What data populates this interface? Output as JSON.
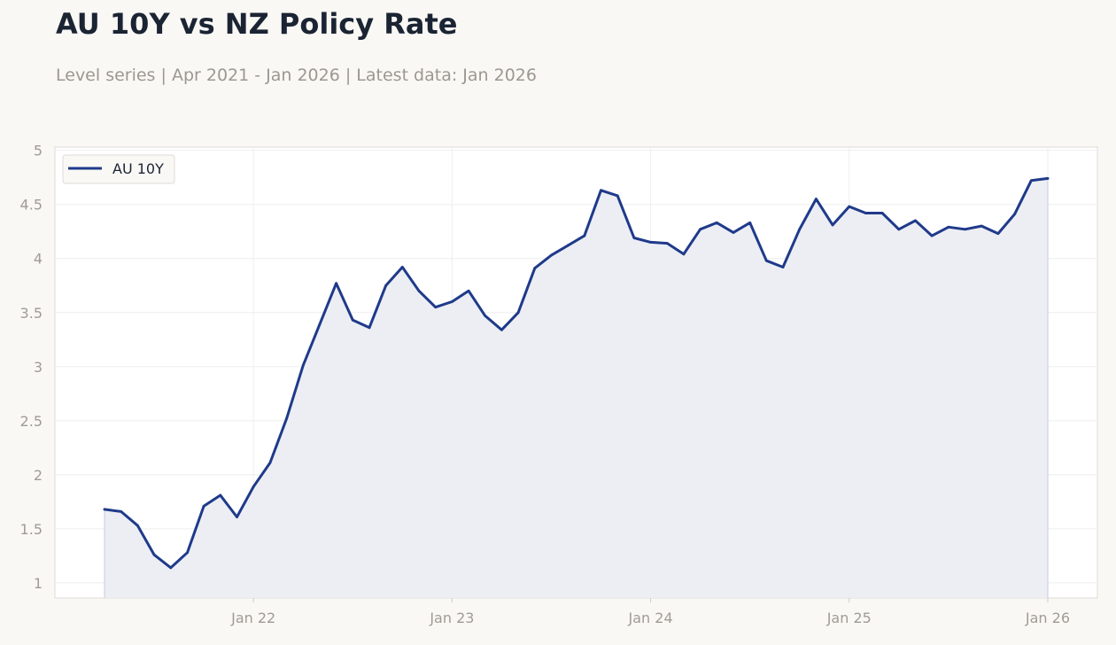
{
  "header": {
    "title": "AU 10Y vs NZ Policy Rate",
    "subtitle": "Level series | Apr 2021 - Jan 2026 | Latest data: Jan 2026"
  },
  "colors": {
    "series": "#1f3a8a",
    "area_fill": "#eceef4",
    "grid": "#eeeeee",
    "axis_text": "#a09c94",
    "background": "#f9f8f5",
    "plot_background": "#ffffff"
  },
  "chart_data": {
    "type": "line",
    "title": "AU 10Y vs NZ Policy Rate",
    "subtitle": "Level series | Apr 2021 - Jan 2026 | Latest data: Jan 2026",
    "xlabel": "",
    "ylabel": "",
    "ylim": [
      0.86,
      5.03
    ],
    "xlim": [
      "2021-01",
      "2026-04"
    ],
    "yticks": [
      1,
      1.5,
      2,
      2.5,
      3,
      3.5,
      4,
      4.5,
      5
    ],
    "ytick_labels": [
      "1",
      "1.5",
      "2",
      "2.5",
      "3",
      "3.5",
      "4",
      "4.5",
      "5"
    ],
    "xticks": [
      "2022-01",
      "2023-01",
      "2024-01",
      "2025-01",
      "2026-01"
    ],
    "xtick_labels": [
      "Jan 22",
      "Jan 23",
      "Jan 24",
      "Jan 25",
      "Jan 26"
    ],
    "grid": true,
    "area_fill": true,
    "legend": {
      "position": "top-left",
      "entries": [
        "AU 10Y"
      ]
    },
    "x": [
      "2021-04",
      "2021-05",
      "2021-06",
      "2021-07",
      "2021-08",
      "2021-09",
      "2021-10",
      "2021-11",
      "2021-12",
      "2022-01",
      "2022-02",
      "2022-03",
      "2022-04",
      "2022-05",
      "2022-06",
      "2022-07",
      "2022-08",
      "2022-09",
      "2022-10",
      "2022-11",
      "2022-12",
      "2023-01",
      "2023-02",
      "2023-03",
      "2023-04",
      "2023-05",
      "2023-06",
      "2023-07",
      "2023-08",
      "2023-09",
      "2023-10",
      "2023-11",
      "2023-12",
      "2024-01",
      "2024-02",
      "2024-03",
      "2024-04",
      "2024-05",
      "2024-06",
      "2024-07",
      "2024-08",
      "2024-09",
      "2024-10",
      "2024-11",
      "2024-12",
      "2025-01",
      "2025-02",
      "2025-03",
      "2025-04",
      "2025-05",
      "2025-06",
      "2025-07",
      "2025-08",
      "2025-09",
      "2025-10",
      "2025-11",
      "2025-12",
      "2026-01"
    ],
    "series": [
      {
        "name": "AU 10Y",
        "values": [
          1.68,
          1.66,
          1.53,
          1.26,
          1.14,
          1.28,
          1.71,
          1.81,
          1.61,
          1.89,
          2.11,
          2.52,
          3.01,
          3.39,
          3.77,
          3.43,
          3.36,
          3.75,
          3.92,
          3.7,
          3.55,
          3.6,
          3.7,
          3.47,
          3.34,
          3.5,
          3.91,
          4.03,
          4.12,
          4.21,
          4.63,
          4.58,
          4.19,
          4.15,
          4.14,
          4.04,
          4.27,
          4.33,
          4.24,
          4.33,
          3.98,
          3.92,
          4.27,
          4.55,
          4.31,
          4.48,
          4.42,
          4.42,
          4.27,
          4.35,
          4.21,
          4.29,
          4.27,
          4.3,
          4.23,
          4.41,
          4.72,
          4.74
        ]
      }
    ]
  }
}
